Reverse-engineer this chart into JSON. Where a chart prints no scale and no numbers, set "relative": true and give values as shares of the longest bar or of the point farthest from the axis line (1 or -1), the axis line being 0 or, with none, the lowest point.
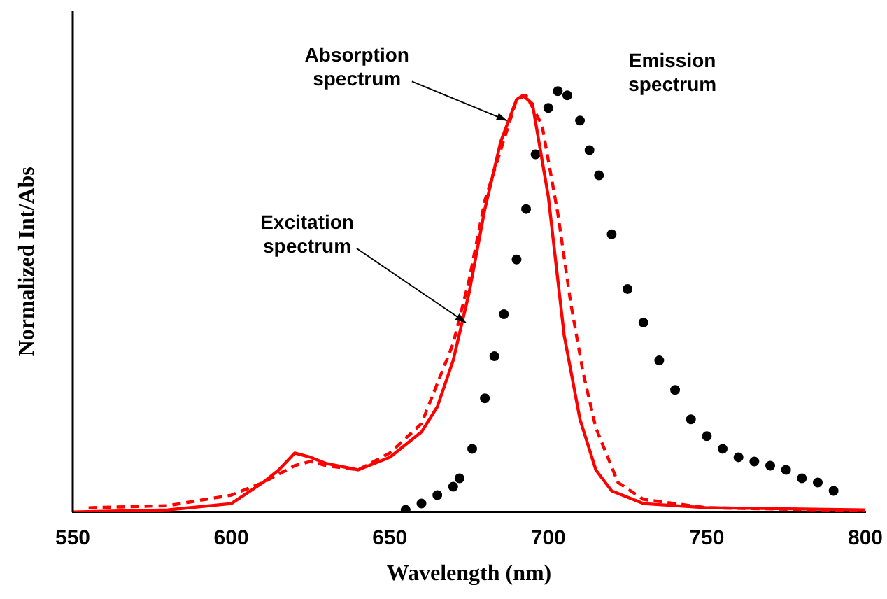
{
  "chart_data": {
    "type": "line",
    "relative": true,
    "xlabel": "Wavelength (nm)",
    "ylabel": "Normalized Int/Abs",
    "xlim": [
      550,
      800
    ],
    "xticks": [
      550,
      600,
      650,
      700,
      750,
      800
    ],
    "grid": false,
    "legend": false,
    "series": [
      {
        "color": "#ff0000",
        "line_style": "solid",
        "marker": "none",
        "x": [
          550,
          580,
          600,
          610,
          615,
          620,
          625,
          630,
          640,
          650,
          660,
          665,
          670,
          675,
          680,
          685,
          690,
          692,
          695,
          700,
          705,
          710,
          715,
          720,
          730,
          750,
          800
        ],
        "values": [
          0,
          0.005,
          0.02,
          0.07,
          0.1,
          0.14,
          0.13,
          0.115,
          0.1,
          0.13,
          0.19,
          0.25,
          0.36,
          0.52,
          0.72,
          0.88,
          0.98,
          0.99,
          0.97,
          0.75,
          0.42,
          0.22,
          0.1,
          0.05,
          0.02,
          0.01,
          0.005
        ]
      },
      {
        "color": "#ff0000",
        "line_style": "dashed",
        "marker": "none",
        "x": [
          555,
          580,
          600,
          610,
          620,
          625,
          630,
          640,
          650,
          660,
          670,
          675,
          680,
          690,
          693,
          698,
          703,
          707,
          711,
          715,
          722,
          730,
          750,
          800
        ],
        "values": [
          0.01,
          0.015,
          0.04,
          0.07,
          0.11,
          0.12,
          0.11,
          0.1,
          0.14,
          0.21,
          0.4,
          0.55,
          0.74,
          0.98,
          0.99,
          0.92,
          0.71,
          0.5,
          0.33,
          0.2,
          0.07,
          0.03,
          0.01,
          0.003
        ]
      },
      {
        "type": "scatter",
        "color": "#000000",
        "marker": "circle",
        "x": [
          655,
          660,
          665,
          670,
          672,
          676,
          680,
          683,
          686,
          690,
          693,
          696,
          700,
          703,
          706,
          710,
          713,
          716,
          720,
          725,
          730,
          735,
          740,
          745,
          750,
          755,
          760,
          765,
          770,
          775,
          780,
          785,
          790
        ],
        "values": [
          0.005,
          0.02,
          0.04,
          0.06,
          0.08,
          0.15,
          0.27,
          0.37,
          0.47,
          0.6,
          0.72,
          0.85,
          0.96,
          1,
          0.99,
          0.93,
          0.86,
          0.8,
          0.66,
          0.53,
          0.45,
          0.36,
          0.29,
          0.22,
          0.18,
          0.15,
          0.13,
          0.12,
          0.11,
          0.1,
          0.08,
          0.07,
          0.05
        ]
      }
    ],
    "annotations": [
      {
        "text": "Absorption spectrum",
        "x": 687,
        "y": 0.93
      },
      {
        "text": "Excitation spectrum",
        "x": 674,
        "y": 0.45
      },
      {
        "text": "Emission spectrum",
        "x": 712,
        "y": 0.95
      }
    ]
  }
}
